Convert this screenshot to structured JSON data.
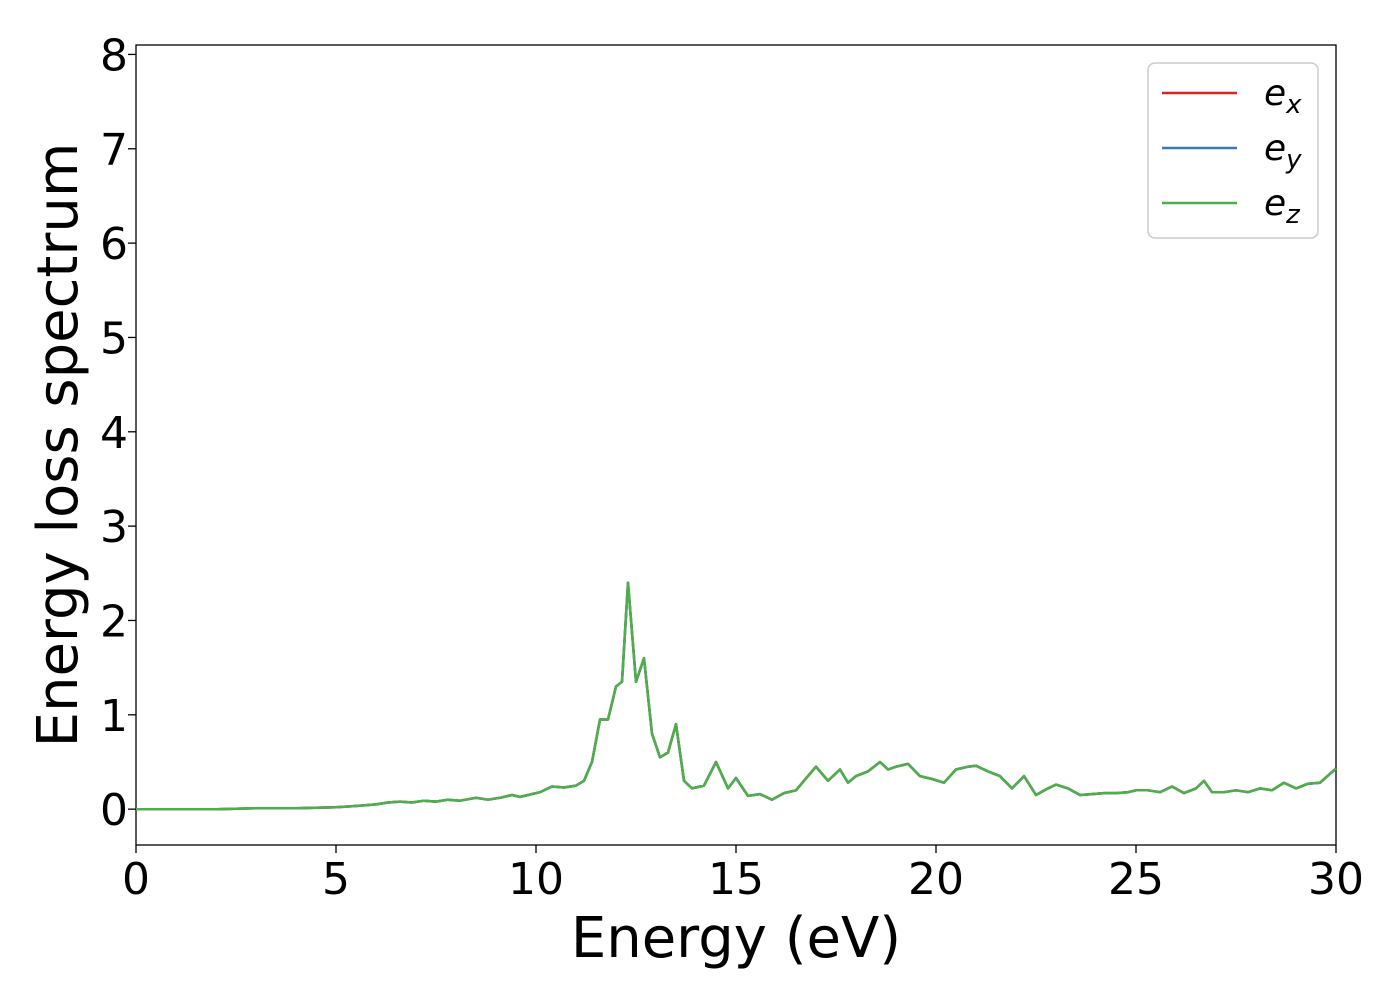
{
  "chart_data": {
    "type": "line",
    "xlabel": "Energy (eV)",
    "ylabel": "Energy loss spectrum",
    "xlim": [
      0,
      30
    ],
    "ylim": [
      -0.38,
      8.1
    ],
    "xticks": [
      0,
      5,
      10,
      15,
      20,
      25,
      30
    ],
    "yticks": [
      0,
      1,
      2,
      3,
      4,
      5,
      6,
      7,
      8
    ],
    "grid": false,
    "legend_position": "top-right",
    "series": [
      {
        "name": "e",
        "subscript": "x",
        "color": "#d62728"
      },
      {
        "name": "e",
        "subscript": "y",
        "color": "#3a78b6"
      },
      {
        "name": "e",
        "subscript": "z",
        "color": "#4daf4a"
      }
    ],
    "x": [
      0,
      1,
      2,
      3,
      4,
      5,
      5.4,
      5.7,
      6.0,
      6.3,
      6.6,
      6.9,
      7.2,
      7.5,
      7.8,
      8.1,
      8.5,
      8.8,
      9.1,
      9.4,
      9.6,
      9.8,
      10.1,
      10.4,
      10.7,
      11.0,
      11.2,
      11.4,
      11.6,
      11.8,
      12.0,
      12.15,
      12.3,
      12.5,
      12.7,
      12.9,
      13.1,
      13.3,
      13.5,
      13.7,
      13.9,
      14.2,
      14.5,
      14.8,
      15.0,
      15.3,
      15.6,
      15.9,
      16.2,
      16.5,
      16.8,
      17.0,
      17.3,
      17.6,
      17.8,
      18.0,
      18.3,
      18.6,
      18.8,
      19.0,
      19.3,
      19.6,
      19.9,
      20.2,
      20.5,
      20.8,
      21.0,
      21.3,
      21.6,
      21.9,
      22.2,
      22.5,
      22.8,
      23.0,
      23.3,
      23.6,
      23.9,
      24.2,
      24.5,
      24.8,
      25.0,
      25.3,
      25.6,
      25.9,
      26.2,
      26.5,
      26.7,
      26.9,
      27.2,
      27.5,
      27.8,
      28.1,
      28.4,
      28.7,
      29.0,
      29.3,
      29.6,
      30.0
    ],
    "y": [
      0.0,
      0.0,
      0.0,
      0.01,
      0.01,
      0.02,
      0.03,
      0.04,
      0.05,
      0.07,
      0.08,
      0.07,
      0.09,
      0.08,
      0.1,
      0.09,
      0.12,
      0.1,
      0.12,
      0.15,
      0.13,
      0.15,
      0.18,
      0.24,
      0.23,
      0.25,
      0.3,
      0.5,
      0.95,
      0.95,
      1.3,
      1.35,
      2.4,
      1.35,
      1.6,
      0.8,
      0.55,
      0.6,
      0.9,
      0.3,
      0.22,
      0.25,
      0.5,
      0.22,
      0.33,
      0.14,
      0.16,
      0.1,
      0.17,
      0.2,
      0.35,
      0.45,
      0.3,
      0.42,
      0.28,
      0.35,
      0.4,
      0.5,
      0.42,
      0.45,
      0.48,
      0.35,
      0.32,
      0.28,
      0.42,
      0.45,
      0.46,
      0.4,
      0.35,
      0.22,
      0.35,
      0.15,
      0.22,
      0.26,
      0.22,
      0.15,
      0.16,
      0.17,
      0.17,
      0.18,
      0.2,
      0.2,
      0.18,
      0.24,
      0.17,
      0.22,
      0.3,
      0.18,
      0.18,
      0.2,
      0.18,
      0.22,
      0.2,
      0.28,
      0.22,
      0.27,
      0.28,
      0.43
    ]
  }
}
